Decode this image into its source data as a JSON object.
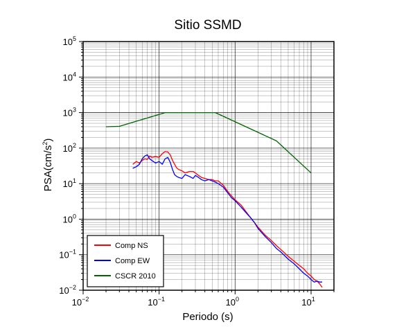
{
  "chart_data": {
    "type": "line",
    "title": "Sitio SSMD",
    "xlabel": "Periodo (s)",
    "ylabel": "PSA(cm/s",
    "ylabel_sup": "2",
    "ylabel_close": ")",
    "x_scale": "log",
    "y_scale": "log",
    "xlim": [
      0.01,
      20
    ],
    "ylim": [
      0.01,
      100000
    ],
    "grid": true,
    "legend_position": "bottom-left",
    "x_ticks": [
      {
        "value": 0.01,
        "base": "10",
        "exp": "−2"
      },
      {
        "value": 0.1,
        "base": "10",
        "exp": "−1"
      },
      {
        "value": 1,
        "base": "10",
        "exp": "0"
      },
      {
        "value": 10,
        "base": "10",
        "exp": "1"
      }
    ],
    "y_ticks": [
      {
        "value": 0.01,
        "base": "10",
        "exp": "−2"
      },
      {
        "value": 0.1,
        "base": "10",
        "exp": "−1"
      },
      {
        "value": 1,
        "base": "10",
        "exp": "0"
      },
      {
        "value": 10,
        "base": "10",
        "exp": "1"
      },
      {
        "value": 100,
        "base": "10",
        "exp": "2"
      },
      {
        "value": 1000,
        "base": "10",
        "exp": "3"
      },
      {
        "value": 10000,
        "base": "10",
        "exp": "4"
      },
      {
        "value": 100000,
        "base": "10",
        "exp": "5"
      }
    ],
    "series": [
      {
        "name": "Comp NS",
        "color": "#ff0000",
        "x": [
          0.045,
          0.05,
          0.055,
          0.06,
          0.065,
          0.07,
          0.075,
          0.08,
          0.09,
          0.1,
          0.11,
          0.12,
          0.13,
          0.14,
          0.15,
          0.16,
          0.17,
          0.18,
          0.2,
          0.22,
          0.25,
          0.28,
          0.3,
          0.33,
          0.36,
          0.4,
          0.45,
          0.5,
          0.55,
          0.6,
          0.7,
          0.8,
          0.9,
          1.0,
          1.2,
          1.4,
          1.6,
          1.8,
          2.0,
          2.5,
          3.0,
          3.5,
          4.0,
          5.0,
          6.0,
          7.0,
          8.0,
          9.0,
          10.0,
          11.0,
          12.0,
          13.0,
          14.0
        ],
        "y": [
          35,
          42,
          38,
          45,
          50,
          48,
          60,
          55,
          58,
          55,
          70,
          80,
          78,
          65,
          45,
          35,
          28,
          25,
          23,
          20,
          22,
          22,
          20,
          17,
          15,
          14,
          13,
          13,
          12,
          12,
          9,
          6,
          4.5,
          3.5,
          2.5,
          1.6,
          1.1,
          0.8,
          0.6,
          0.35,
          0.25,
          0.18,
          0.14,
          0.09,
          0.065,
          0.05,
          0.04,
          0.03,
          0.025,
          0.02,
          0.018,
          0.015,
          0.012
        ]
      },
      {
        "name": "Comp EW",
        "color": "#0000ff",
        "x": [
          0.045,
          0.05,
          0.055,
          0.06,
          0.065,
          0.07,
          0.075,
          0.08,
          0.09,
          0.1,
          0.11,
          0.12,
          0.13,
          0.14,
          0.15,
          0.16,
          0.17,
          0.18,
          0.2,
          0.22,
          0.25,
          0.28,
          0.3,
          0.33,
          0.36,
          0.4,
          0.45,
          0.5,
          0.55,
          0.6,
          0.7,
          0.8,
          0.9,
          1.0,
          1.2,
          1.4,
          1.6,
          1.8,
          2.0,
          2.5,
          3.0,
          3.5,
          4.0,
          5.0,
          6.0,
          7.0,
          8.0,
          9.0,
          10.0,
          11.0,
          12.0,
          13.0,
          14.0
        ],
        "y": [
          27,
          30,
          35,
          50,
          60,
          65,
          50,
          45,
          38,
          42,
          35,
          50,
          55,
          40,
          25,
          18,
          16,
          15,
          14,
          18,
          16,
          14,
          17,
          15,
          13,
          12,
          13,
          12,
          11,
          10,
          8,
          5.5,
          4,
          3.3,
          2.2,
          1.5,
          1.1,
          0.8,
          0.55,
          0.32,
          0.22,
          0.15,
          0.12,
          0.075,
          0.055,
          0.04,
          0.03,
          0.025,
          0.02,
          0.017,
          0.018,
          0.017,
          0.017
        ]
      },
      {
        "name": "CSCR 2010",
        "color": "#006400",
        "x": [
          0.02,
          0.03,
          0.12,
          0.55,
          3.5,
          10.0
        ],
        "y": [
          400,
          410,
          1000,
          1000,
          160,
          20
        ]
      }
    ]
  }
}
